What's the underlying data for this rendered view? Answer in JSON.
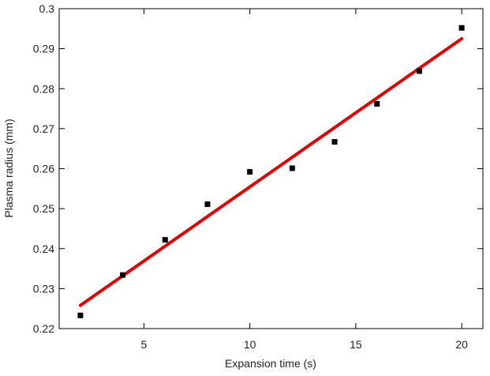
{
  "chart_data": {
    "type": "scatter",
    "xlabel": "Expansion time (s)",
    "ylabel": "Plasma radius (mm)",
    "xlim": [
      1,
      21
    ],
    "ylim": [
      0.22,
      0.3
    ],
    "xticks": [
      5,
      10,
      15,
      20
    ],
    "yticks": [
      0.22,
      0.23,
      0.24,
      0.25,
      0.26,
      0.27,
      0.28,
      0.29,
      0.3
    ],
    "xtick_labels": [
      "5",
      "10",
      "15",
      "20"
    ],
    "ytick_labels": [
      "0.22",
      "0.23",
      "0.24",
      "0.25",
      "0.26",
      "0.27",
      "0.28",
      "0.29",
      "0.3"
    ],
    "grid": false,
    "series": [
      {
        "type": "scatter",
        "marker": "square",
        "color": "#000000",
        "x": [
          2,
          4,
          6,
          8,
          10,
          12,
          14,
          16,
          18,
          20
        ],
        "y": [
          0.2233,
          0.2334,
          0.2422,
          0.2511,
          0.2592,
          0.2601,
          0.2667,
          0.2762,
          0.2844,
          0.2952
        ]
      },
      {
        "type": "line",
        "color": "#e00000",
        "x": [
          2,
          20
        ],
        "y": [
          0.2258,
          0.2925
        ]
      }
    ]
  }
}
